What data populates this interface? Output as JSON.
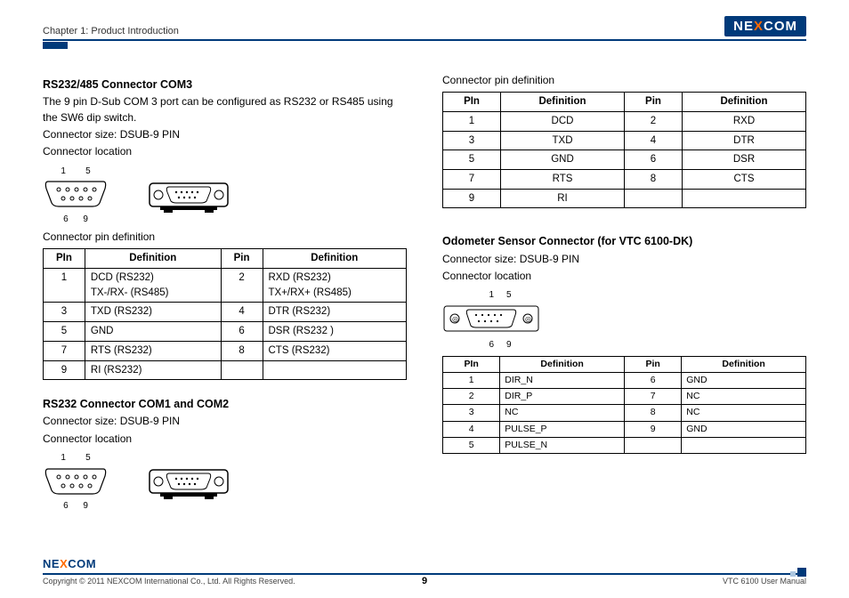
{
  "header": {
    "chapter": "Chapter 1: Product Introduction",
    "logo1": "NE",
    "logoX": "X",
    "logo2": "COM"
  },
  "left": {
    "sec1_title": "RS232/485 Connector COM3",
    "sec1_desc": "The 9 pin D-Sub COM 3 port can be configured as RS232 or RS485 using the SW6 dip switch.",
    "sec1_size": "Connector size: DSUB-9 PIN",
    "sec1_loc": "Connector location",
    "pindef_label": "Connector pin definition",
    "t1_h1": "PIn",
    "t1_h2": "Definition",
    "t1_h3": "Pin",
    "t1_h4": "Definition",
    "t1": [
      [
        "1",
        "DCD (RS232)\nTX-/RX- (RS485)",
        "2",
        "RXD (RS232)\nTX+/RX+ (RS485)"
      ],
      [
        "3",
        "TXD (RS232)",
        "4",
        "DTR (RS232)"
      ],
      [
        "5",
        "GND",
        "6",
        "DSR (RS232 )"
      ],
      [
        "7",
        "RTS (RS232)",
        "8",
        "CTS (RS232)"
      ],
      [
        "9",
        "RI (RS232)",
        "",
        ""
      ]
    ],
    "sec2_title": "RS232 Connector COM1 and COM2",
    "sec2_size": "Connector size: DSUB-9 PIN",
    "sec2_loc": "Connector location"
  },
  "right": {
    "pindef_label": "Connector pin definition",
    "t2_h1": "PIn",
    "t2_h2": "Definition",
    "t2_h3": "Pin",
    "t2_h4": "Definition",
    "t2": [
      [
        "1",
        "DCD",
        "2",
        "RXD"
      ],
      [
        "3",
        "TXD",
        "4",
        "DTR"
      ],
      [
        "5",
        "GND",
        "6",
        "DSR"
      ],
      [
        "7",
        "RTS",
        "8",
        "CTS"
      ],
      [
        "9",
        "RI",
        "",
        ""
      ]
    ],
    "sec3_title": "Odometer Sensor Connector (for VTC 6100-DK)",
    "sec3_size": "Connector size: DSUB-9 PIN",
    "sec3_loc": "Connector location",
    "t3_h1": "PIn",
    "t3_h2": "Definition",
    "t3_h3": "Pin",
    "t3_h4": "Definition",
    "t3": [
      [
        "1",
        "DIR_N",
        "6",
        "GND"
      ],
      [
        "2",
        "DIR_P",
        "7",
        "NC"
      ],
      [
        "3",
        "NC",
        "8",
        "NC"
      ],
      [
        "4",
        "PULSE_P",
        "9",
        "GND"
      ],
      [
        "5",
        "PULSE_N",
        "",
        ""
      ]
    ]
  },
  "footer": {
    "logo1": "NE",
    "logoX": "X",
    "logo2": "COM",
    "copyright": "Copyright © 2011 NEXCOM International Co., Ltd. All Rights Reserved.",
    "page": "9",
    "manual": "VTC 6100 User Manual"
  },
  "diagram": {
    "pin_top_left": "1",
    "pin_top_right": "5",
    "pin_bot_left": "6",
    "pin_bot_right": "9"
  }
}
